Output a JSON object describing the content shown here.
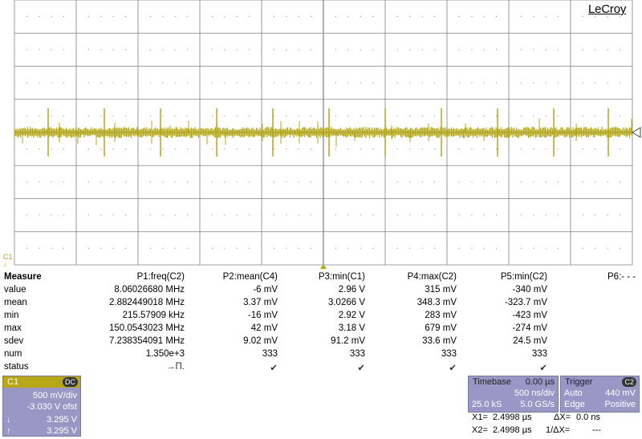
{
  "brand": "LeCroy",
  "channel_marker": "C1",
  "measure": {
    "title": "Measure",
    "params": [
      "P1:freq(C2)",
      "P2:mean(C4)",
      "P3:min(C1)",
      "P4:max(C2)",
      "P5:min(C2)",
      "P6:- - -"
    ],
    "rows": [
      {
        "label": "value",
        "cells": [
          "8.06026680 MHz",
          "-6 mV",
          "2.96 V",
          "315 mV",
          "-340 mV"
        ]
      },
      {
        "label": "mean",
        "cells": [
          "2.882449018 MHz",
          "3.37 mV",
          "3.0266 V",
          "348.3 mV",
          "-323.7 mV"
        ]
      },
      {
        "label": "min",
        "cells": [
          "215.57909 kHz",
          "-16 mV",
          "2.92 V",
          "283 mV",
          "-423 mV"
        ]
      },
      {
        "label": "max",
        "cells": [
          "150.0543023 MHz",
          "42 mV",
          "3.18 V",
          "679 mV",
          "-274 mV"
        ]
      },
      {
        "label": "sdev",
        "cells": [
          "7.238354091 MHz",
          "9.02 mV",
          "91.2 mV",
          "33.6 mV",
          "24.5 mV"
        ]
      },
      {
        "label": "num",
        "cells": [
          "1.350e+3",
          "333",
          "333",
          "333",
          "333"
        ]
      }
    ],
    "status_label": "status",
    "status_cells": [
      "→Π.",
      "✔",
      "✔",
      "✔",
      "✔"
    ]
  },
  "channel_panel": {
    "name": "C1",
    "coupling": "DC",
    "vdiv": "500 mV/div",
    "offset": "-3.030 V ofst",
    "cursor1_icon": "↓",
    "cursor1_value": "3.295 V",
    "cursor2_icon": "↑",
    "cursor2_value": "3.295 V"
  },
  "timebase": {
    "label": "Timebase",
    "delay": "0.00 µs",
    "tdiv": "500 ns/div",
    "samples": "25.0 kS",
    "rate": "5.0 GS/s"
  },
  "trigger": {
    "label": "Trigger",
    "source": "C2",
    "mode": "Auto",
    "level": "440 mV",
    "type": "Edge",
    "slope": "Positive"
  },
  "cursors": {
    "x1_label": "X1=",
    "x1_value": "2.4998 µs",
    "dx_label": "ΔX=",
    "dx_value": "0.0 ns",
    "x2_label": "X2=",
    "x2_value": "2.4998 µs",
    "inv_dx_label": "1/ΔX=",
    "inv_dx_value": "---"
  },
  "colors": {
    "trace": "#b5a716",
    "grid": "#808080",
    "panel_bg": "#9a97c6",
    "panel_title": "#2b2b6a"
  }
}
